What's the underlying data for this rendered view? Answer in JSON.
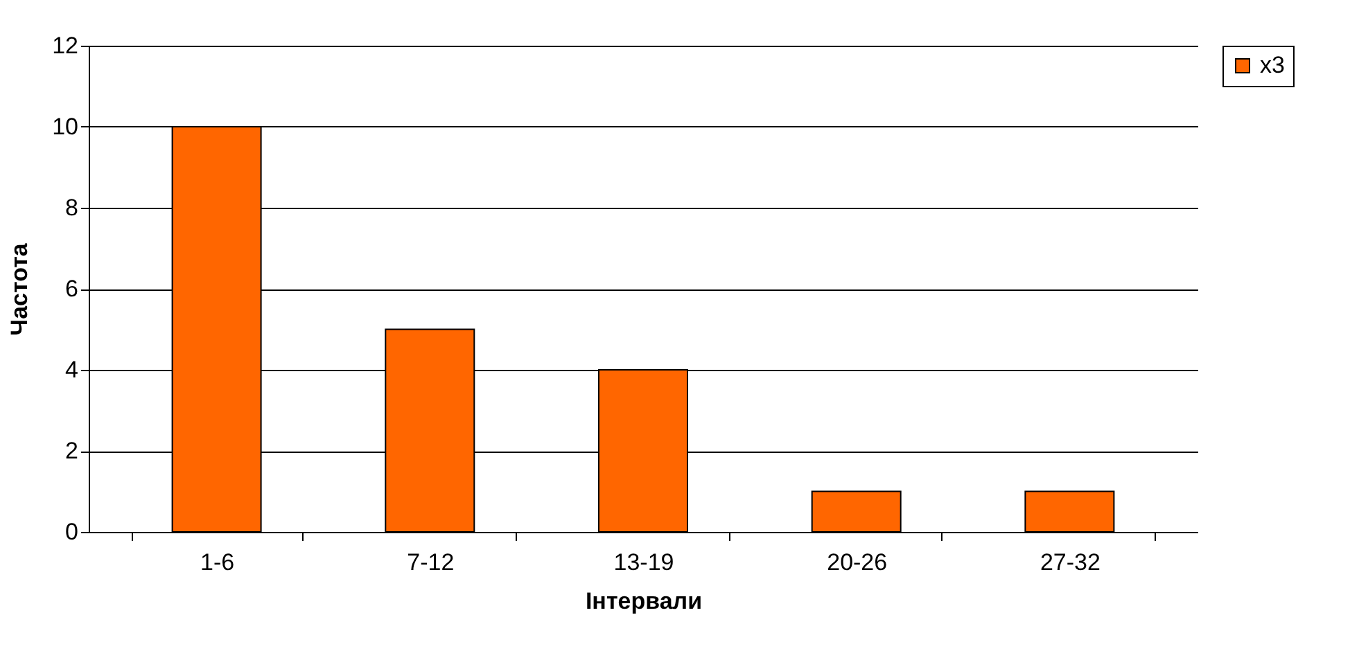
{
  "chart_data": {
    "type": "bar",
    "xlabel": "Інтервали",
    "ylabel": "Частота",
    "categories": [
      "1-6",
      "7-12",
      "13-19",
      "20-26",
      "27-32"
    ],
    "series": [
      {
        "name": "x3",
        "color": "#ff6600",
        "values": [
          10,
          5,
          4,
          1,
          1
        ]
      }
    ],
    "ylim": [
      0,
      12
    ],
    "yticks": [
      0,
      2,
      4,
      6,
      8,
      10,
      12
    ],
    "grid": "y",
    "legend": "right"
  }
}
